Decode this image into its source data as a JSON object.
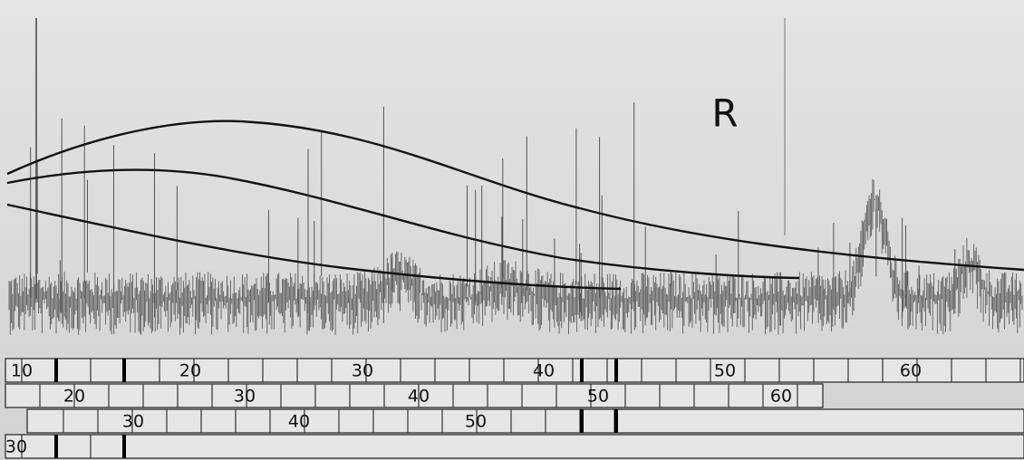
{
  "label": "R",
  "scales": [
    {
      "labels": [
        "10",
        "20",
        "30",
        "40",
        "50",
        "60"
      ]
    },
    {
      "labels": [
        "20",
        "30",
        "40",
        "50",
        "60"
      ]
    },
    {
      "labels": [
        "30",
        "40",
        "50"
      ]
    },
    {
      "labels": [
        "30"
      ]
    }
  ]
}
